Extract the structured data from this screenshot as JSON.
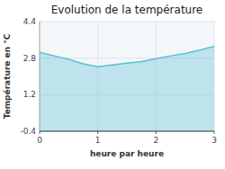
{
  "chart_data": {
    "type": "area",
    "title": "Evolution de la température",
    "x_label": "heure par heure",
    "y_label": "Température en °C",
    "x": [
      0,
      0.25,
      0.5,
      0.75,
      1.0,
      1.25,
      1.5,
      1.75,
      2.0,
      2.25,
      2.5,
      2.75,
      3.0
    ],
    "values": [
      3.05,
      2.9,
      2.75,
      2.55,
      2.42,
      2.5,
      2.58,
      2.65,
      2.78,
      2.9,
      3.0,
      3.15,
      3.32
    ],
    "color": "#5bbdd6",
    "xlim": [
      0,
      3
    ],
    "ylim": [
      -0.4,
      4.4
    ],
    "xticks": [
      0,
      1,
      2,
      3
    ],
    "yticks": [
      -0.4,
      1.2,
      2.8,
      4.4
    ],
    "grid": true
  }
}
